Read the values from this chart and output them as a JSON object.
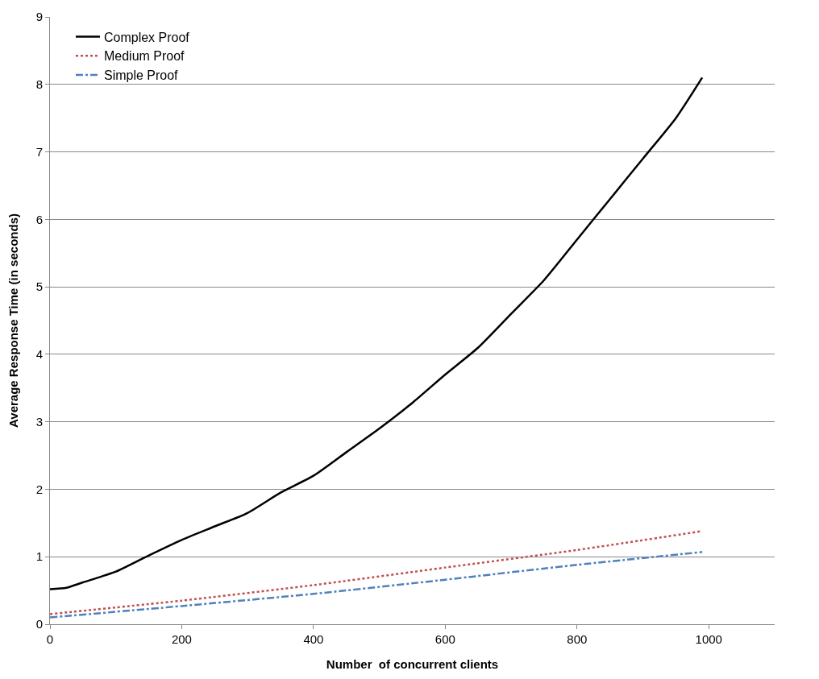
{
  "chart_data": {
    "type": "line",
    "xlabel": "Number  of concurrent clients",
    "ylabel": "Average Response Time (in seconds)",
    "xlim": [
      0,
      1100
    ],
    "xticks": [
      0,
      200,
      400,
      600,
      800,
      1000
    ],
    "ylim": [
      0,
      9
    ],
    "yticks": [
      0,
      1,
      2,
      3,
      4,
      5,
      6,
      7,
      8,
      9
    ],
    "grid": "y",
    "legend": "top left",
    "marker": "none",
    "series": [
      {
        "name": "Complex Proof",
        "color": "#000000",
        "line_style": "solid",
        "x": [
          0,
          25,
          50,
          100,
          150,
          200,
          250,
          300,
          350,
          400,
          450,
          500,
          550,
          600,
          650,
          700,
          750,
          800,
          850,
          900,
          950,
          990
        ],
        "values": [
          0.52,
          0.54,
          0.62,
          0.78,
          1.02,
          1.25,
          1.45,
          1.65,
          1.95,
          2.2,
          2.55,
          2.9,
          3.28,
          3.7,
          4.1,
          4.6,
          5.1,
          5.7,
          6.3,
          6.9,
          7.5,
          8.1
        ]
      },
      {
        "name": "Medium Proof",
        "color": "#c0504d",
        "line_style": "dotted",
        "x": [
          0,
          200,
          400,
          600,
          800,
          990
        ],
        "values": [
          0.15,
          0.35,
          0.58,
          0.84,
          1.1,
          1.38
        ]
      },
      {
        "name": "Simple Proof",
        "color": "#4f81bd",
        "line_style": "dashed",
        "x": [
          0,
          200,
          400,
          600,
          800,
          990
        ],
        "values": [
          0.1,
          0.27,
          0.45,
          0.66,
          0.88,
          1.07
        ]
      }
    ]
  }
}
